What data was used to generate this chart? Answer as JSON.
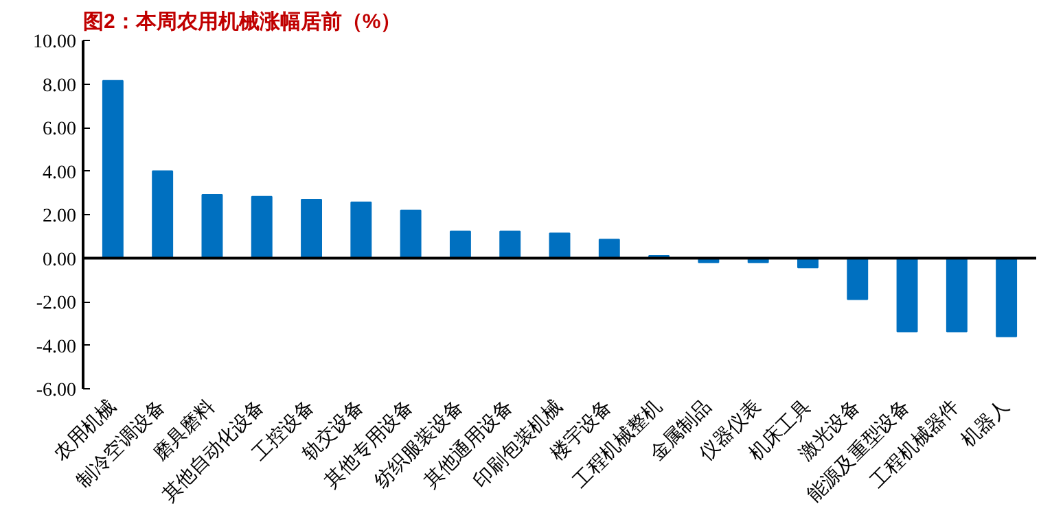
{
  "chart_data": {
    "type": "bar",
    "title": "图2：本周农用机械涨幅居前（%）",
    "categories": [
      "农用机械",
      "制冷空调设备",
      "磨具磨料",
      "其他自动化设备",
      "工控设备",
      "轨交设备",
      "其他专用设备",
      "纺织服装设备",
      "其他通用设备",
      "印刷包装机械",
      "楼宇设备",
      "工程机械整机",
      "金属制品",
      "仪器仪表",
      "机床工具",
      "激光设备",
      "能源及重型设备",
      "工程机械器件",
      "机器人"
    ],
    "values": [
      8.15,
      4.0,
      2.91,
      2.83,
      2.69,
      2.57,
      2.2,
      1.23,
      1.23,
      1.14,
      0.86,
      0.11,
      -0.2,
      -0.2,
      -0.43,
      -1.89,
      -3.37,
      -3.37,
      -3.6
    ],
    "color": "#0070c0",
    "ylim": [
      -6,
      10
    ],
    "yticks": [
      {
        "value": -6,
        "label": "-6.00"
      },
      {
        "value": -4,
        "label": "-4.00"
      },
      {
        "value": -2,
        "label": "-2.00"
      },
      {
        "value": 0,
        "label": "0.00"
      },
      {
        "value": 2,
        "label": "2.00"
      },
      {
        "value": 4,
        "label": "4.00"
      },
      {
        "value": 6,
        "label": "6.00"
      },
      {
        "value": 8,
        "label": "8.00"
      },
      {
        "value": 10,
        "label": "10.00"
      }
    ]
  }
}
